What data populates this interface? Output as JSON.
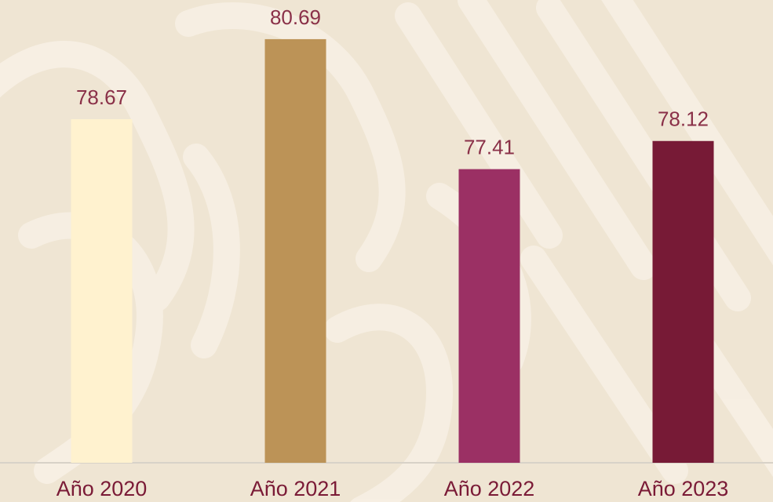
{
  "chart_data": {
    "type": "bar",
    "categories": [
      "Año 2020",
      "Año 2021",
      "Año 2022",
      "Año 2023"
    ],
    "values": [
      78.67,
      80.69,
      77.41,
      78.12
    ],
    "colors": [
      "#fff2cf",
      "#bc9357",
      "#9b3064",
      "#771a36"
    ],
    "ylim": [
      70,
      81.5
    ]
  }
}
